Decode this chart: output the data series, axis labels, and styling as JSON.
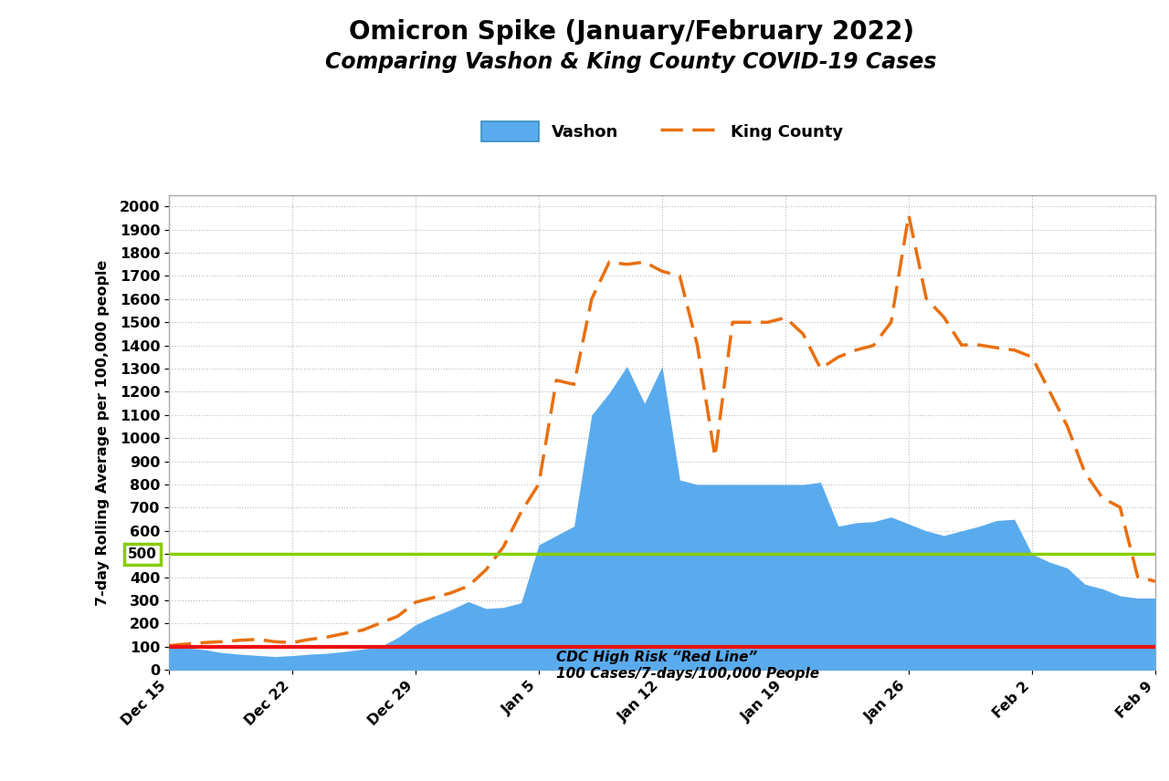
{
  "title_line1": "Omicron Spike (January/February 2022)",
  "title_line2": "Comparing Vashon & King County COVID-19 Cases",
  "ylabel": "7-day Rolling Average per 100,000 people",
  "vashon_color": "#5aabee",
  "king_color": "#E87010",
  "red_line_value": 100,
  "green_line_value": 500,
  "red_line_color": "#EE1111",
  "green_line_color": "#88CC00",
  "annotation_line1": "CDC High Risk “Red Line”",
  "annotation_line2": "100 Cases/7-days/100,000 People",
  "ylim_max": 2050,
  "background_color": "#ffffff",
  "plot_bg_color": "#ffffff",
  "vashon_values": [
    100,
    95,
    88,
    75,
    68,
    63,
    58,
    62,
    68,
    72,
    80,
    90,
    100,
    140,
    195,
    230,
    260,
    295,
    265,
    270,
    290,
    540,
    580,
    620,
    1100,
    1195,
    1310,
    1150,
    1310,
    820,
    800,
    800,
    800,
    800,
    800,
    800,
    800,
    810,
    620,
    635,
    640,
    660,
    630,
    600,
    580,
    600,
    620,
    645,
    650,
    500,
    465,
    440,
    370,
    350,
    320,
    310,
    310
  ],
  "king_values": [
    105,
    112,
    118,
    122,
    128,
    132,
    122,
    118,
    132,
    142,
    158,
    172,
    202,
    232,
    292,
    312,
    332,
    362,
    432,
    532,
    682,
    802,
    1250,
    1232,
    1600,
    1760,
    1750,
    1760,
    1720,
    1700,
    1400,
    920,
    1500,
    1500,
    1500,
    1520,
    1450,
    1300,
    1350,
    1380,
    1400,
    1500,
    1962,
    1602,
    1522,
    1402,
    1402,
    1390,
    1380,
    1350,
    1202,
    1052,
    852,
    742,
    702,
    402,
    382
  ],
  "xtick_positions": [
    0,
    7,
    14,
    21,
    28,
    35,
    42,
    49,
    56
  ],
  "xtick_labels": [
    "Dec 15",
    "Dec 22",
    "Dec 29",
    "Jan 5",
    "Jan 12",
    "Jan 19",
    "Jan 26",
    "Feb 2",
    "Feb 9"
  ],
  "ytick_values": [
    0,
    100,
    200,
    300,
    400,
    500,
    600,
    700,
    800,
    900,
    1000,
    1100,
    1200,
    1300,
    1400,
    1500,
    1600,
    1700,
    1800,
    1900,
    2000
  ]
}
